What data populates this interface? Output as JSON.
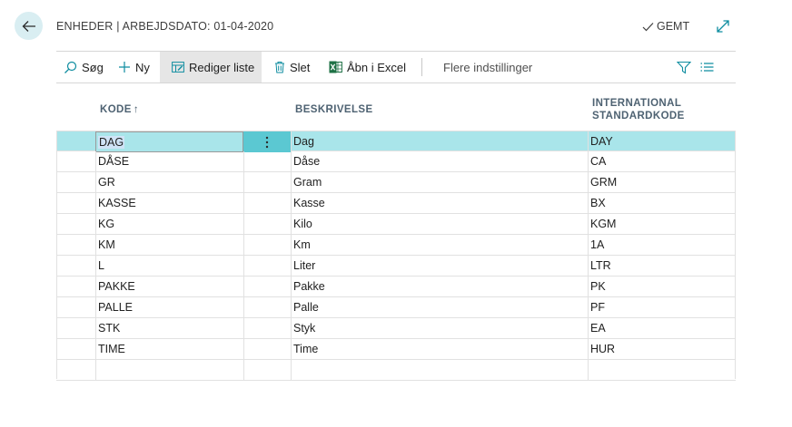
{
  "header": {
    "title": "ENHEDER | ARBEJDSDATO: 01-04-2020",
    "saved_label": "GEMT"
  },
  "toolbar": {
    "search_label": "Søg",
    "new_label": "Ny",
    "edit_list_label": "Rediger liste",
    "delete_label": "Slet",
    "excel_label": "Åbn i Excel",
    "more_label": "Flere indstillinger"
  },
  "columns": {
    "code": "KODE",
    "sort_arrow": "↑",
    "description": "BESKRIVELSE",
    "intl_line1": "INTERNATIONAL",
    "intl_line2": "STANDARDKODE"
  },
  "rows": [
    {
      "code": "DAG",
      "description": "Dag",
      "intl": "DAY"
    },
    {
      "code": "DÅSE",
      "description": "Dåse",
      "intl": "CA"
    },
    {
      "code": "GR",
      "description": "Gram",
      "intl": "GRM"
    },
    {
      "code": "KASSE",
      "description": "Kasse",
      "intl": "BX"
    },
    {
      "code": "KG",
      "description": "Kilo",
      "intl": "KGM"
    },
    {
      "code": "KM",
      "description": "Km",
      "intl": "1A"
    },
    {
      "code": "L",
      "description": "Liter",
      "intl": "LTR"
    },
    {
      "code": "PAKKE",
      "description": "Pakke",
      "intl": "PK"
    },
    {
      "code": "PALLE",
      "description": "Palle",
      "intl": "PF"
    },
    {
      "code": "STK",
      "description": "Styk",
      "intl": "EA"
    },
    {
      "code": "TIME",
      "description": "Time",
      "intl": "HUR"
    }
  ],
  "colors": {
    "accent": "#5bc8d2",
    "selected_row": "#a9e5ea",
    "back_button": "#d9eef2",
    "excel_green": "#1e7145"
  },
  "icons": [
    "back-arrow-icon",
    "checkmark-icon",
    "expand-icon",
    "search-icon",
    "plus-icon",
    "edit-list-icon",
    "trash-icon",
    "excel-icon",
    "filter-icon",
    "list-icon",
    "more-vertical-icon"
  ]
}
